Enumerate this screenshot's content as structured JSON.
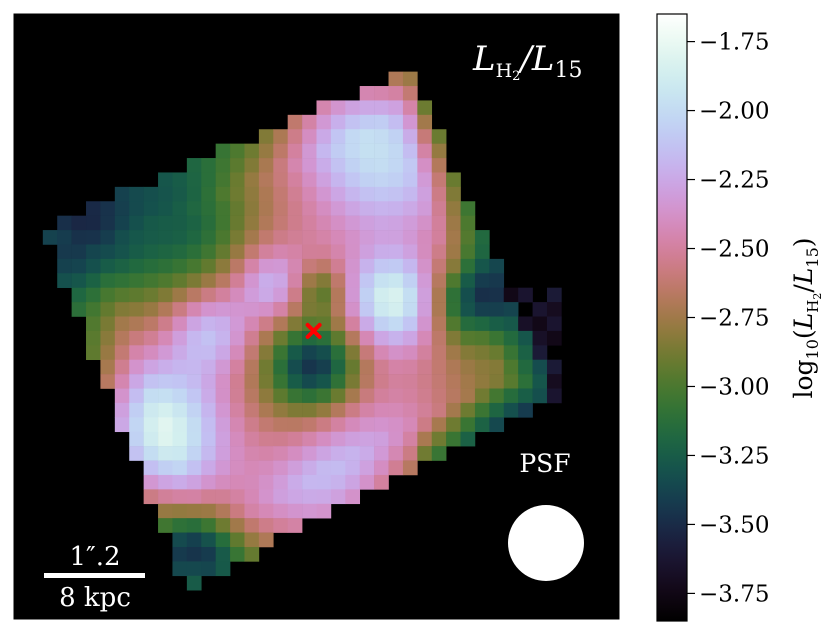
{
  "chart_data": {
    "type": "heatmap",
    "title": "",
    "panel_label": {
      "main": "L",
      "sub": "H",
      "sub2": "2",
      "rest": "/L",
      "rest_sub": "15"
    },
    "colorbar": {
      "label_prefix": "log",
      "label_base": "10",
      "label_paren_open": "(",
      "label_L1": "L",
      "label_L1_sub": "H",
      "label_L1_sub2": "2",
      "label_slash": "/",
      "label_L2": "L",
      "label_L2_sub": "15",
      "label_paren_close": ")",
      "vmin": -3.85,
      "vmax": -1.65,
      "colormap": "cubehelix",
      "ticks": [
        -1.75,
        -2.0,
        -2.25,
        -2.5,
        -2.75,
        -3.0,
        -3.25,
        -3.5,
        -3.75
      ],
      "tick_labels": [
        "−1.75",
        "−2.00",
        "−2.25",
        "−2.50",
        "−2.75",
        "−3.00",
        "−3.25",
        "−3.50",
        "−3.75"
      ]
    },
    "map": {
      "grid_cols": 42,
      "grid_rows": 42,
      "background": "#000000",
      "centroid_marker": {
        "symbol": "X",
        "color": "#ff0000",
        "col": 20.8,
        "row": 22.0
      }
    },
    "psf_label": "PSF",
    "scalebar": {
      "top_label": "1″.2",
      "bottom_label": "8 kpc"
    }
  }
}
